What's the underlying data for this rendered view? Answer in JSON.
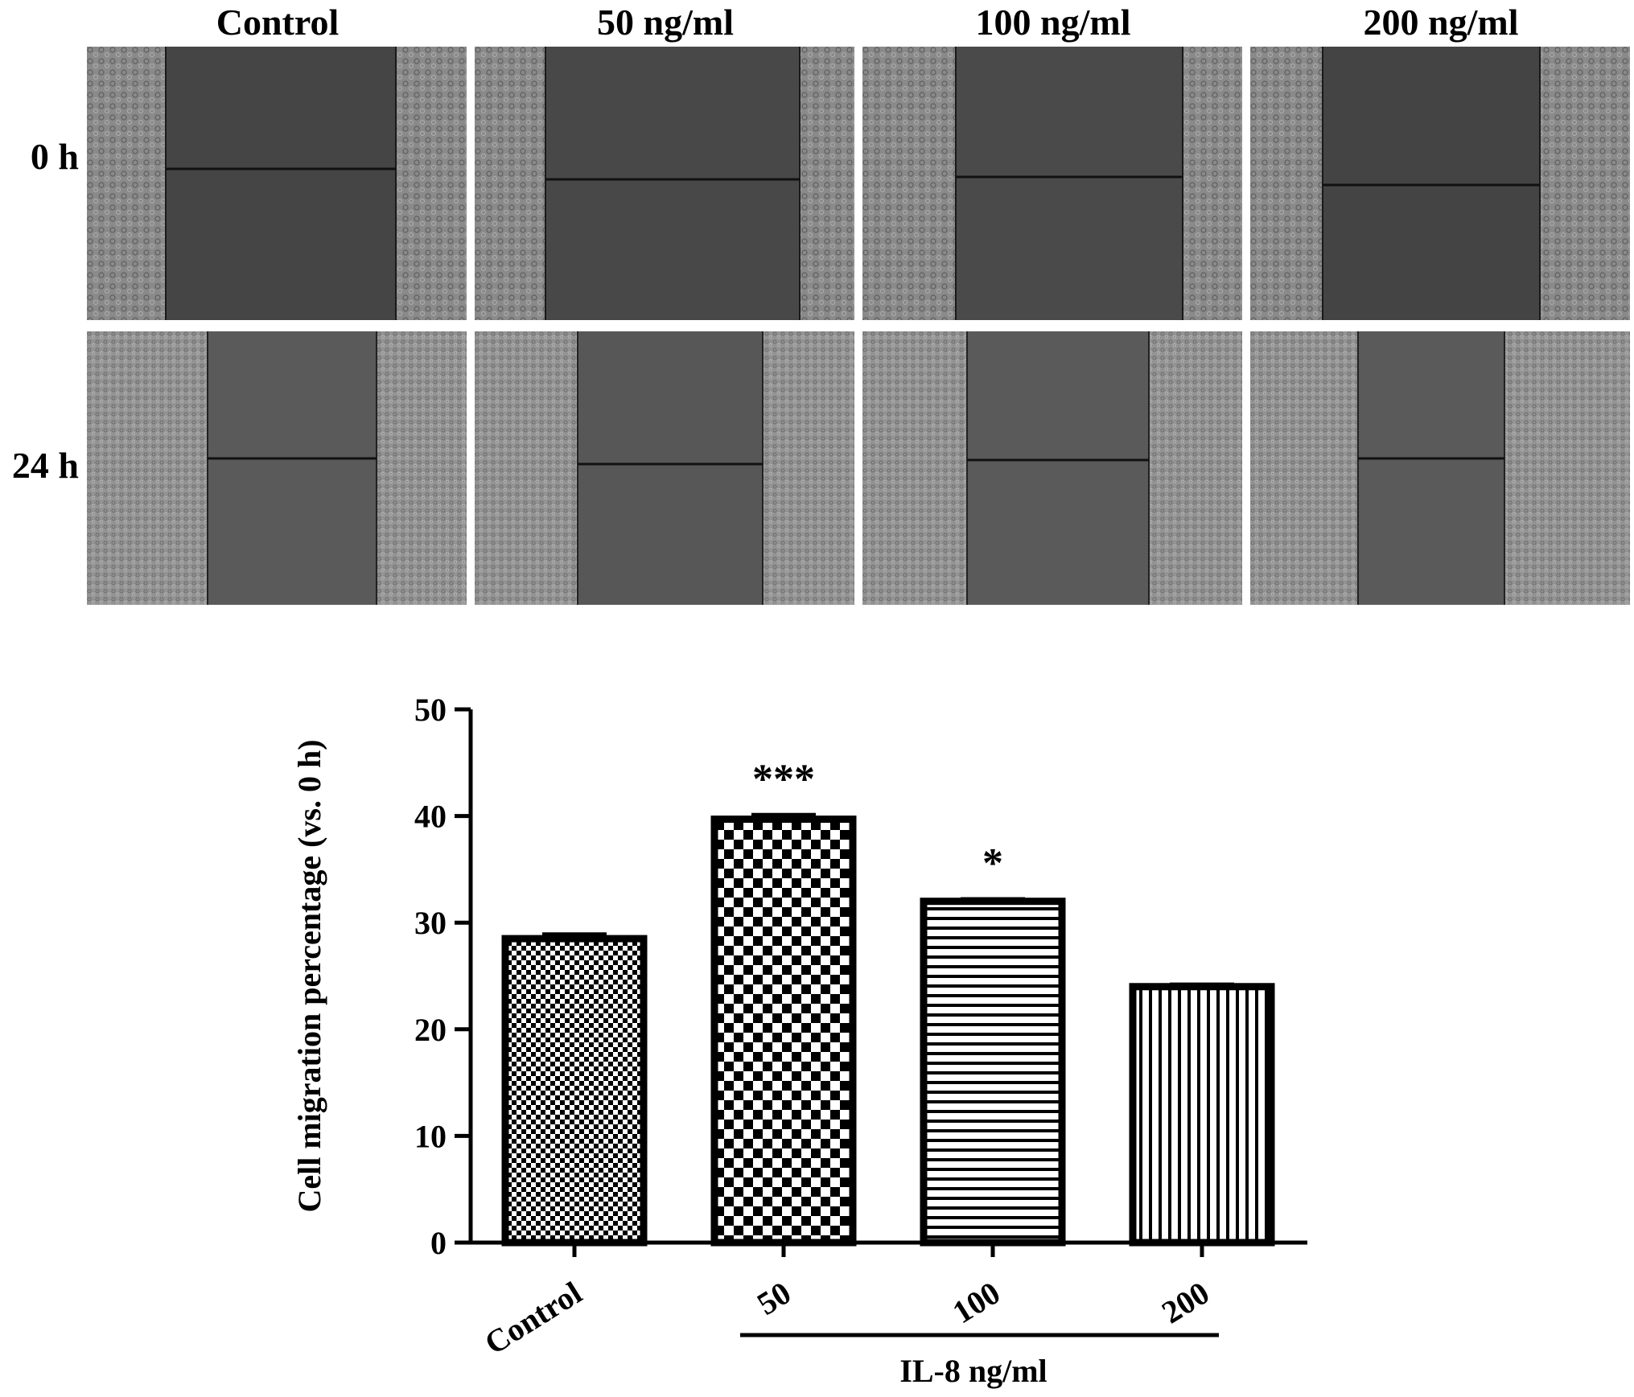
{
  "panels": {
    "columns": [
      "Control",
      "50 ng/ml",
      "100 ng/ml",
      "200 ng/ml"
    ],
    "rows": [
      "0 h",
      "24 h"
    ]
  },
  "chart_data": {
    "type": "bar",
    "categories": [
      "Control",
      "50",
      "100",
      "200"
    ],
    "values": [
      28.5,
      39.7,
      32.0,
      24.0
    ],
    "errors": [
      0.4,
      0.4,
      0.2,
      0.2
    ],
    "significance": [
      "",
      "***",
      "*",
      ""
    ],
    "patterns": [
      "fine-checker",
      "large-checker",
      "horizontal-lines",
      "vertical-lines"
    ],
    "ylabel": "Cell migration percentage (vs. 0 h)",
    "xlabel": "",
    "group_label": "IL-8 ng/ml",
    "group_members": [
      "50",
      "100",
      "200"
    ],
    "ylim": [
      0,
      50
    ],
    "yticks": [
      0,
      10,
      20,
      30,
      40,
      50
    ],
    "grid": false,
    "legend": "none",
    "colors": {
      "bar_border": "#000000",
      "pattern": "#000000",
      "background": "#ffffff"
    }
  }
}
